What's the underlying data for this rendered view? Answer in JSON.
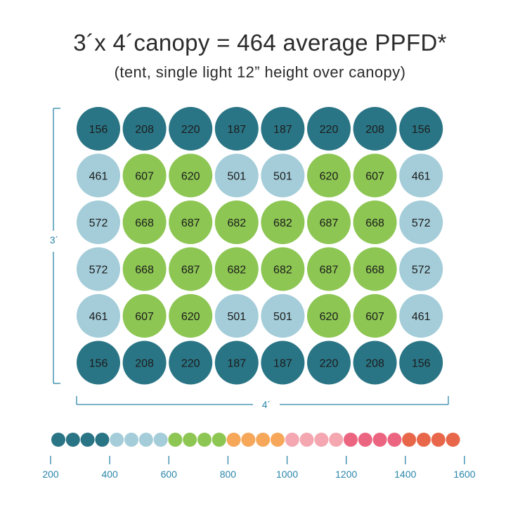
{
  "title": "3´x 4´canopy = 464 average PPFD*",
  "subtitle": "(tent, single light 12” height over canopy)",
  "chart_data": {
    "type": "heatmap",
    "rows": [
      [
        156,
        208,
        220,
        187,
        187,
        220,
        208,
        156
      ],
      [
        461,
        607,
        620,
        501,
        501,
        620,
        607,
        461
      ],
      [
        572,
        668,
        687,
        682,
        682,
        687,
        668,
        572
      ],
      [
        572,
        668,
        687,
        682,
        682,
        687,
        668,
        572
      ],
      [
        461,
        607,
        620,
        501,
        501,
        620,
        607,
        461
      ],
      [
        156,
        208,
        220,
        187,
        187,
        220,
        208,
        156
      ]
    ],
    "height_label": "3´",
    "width_label": "4´",
    "color_scale": {
      "ticks": [
        "200",
        "400",
        "600",
        "800",
        "1000",
        "1200",
        "1400",
        "1600"
      ],
      "min": 200,
      "max": 1600,
      "bands": [
        {
          "from": 200,
          "to": 400,
          "color": "#2a7585"
        },
        {
          "from": 400,
          "to": 600,
          "color": "#a4cdd9"
        },
        {
          "from": 600,
          "to": 800,
          "color": "#8dc653"
        },
        {
          "from": 800,
          "to": 1000,
          "color": "#f6a75a"
        },
        {
          "from": 1000,
          "to": 1200,
          "color": "#f4a7b0"
        },
        {
          "from": 1200,
          "to": 1400,
          "color": "#ec6580"
        },
        {
          "from": 1400,
          "to": 1600,
          "color": "#e8674a"
        }
      ],
      "dots_per_band": 4
    },
    "axis_color": "#2a85a8",
    "cell_text_color": "#1b1b1b"
  }
}
